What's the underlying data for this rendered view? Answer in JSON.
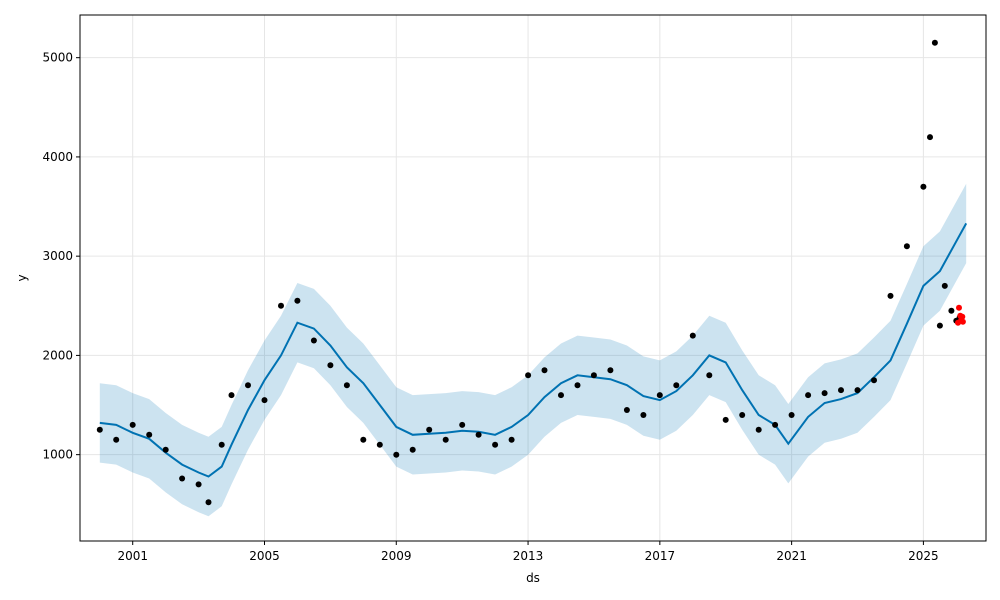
{
  "chart_data": {
    "type": "scatter",
    "xlabel": "ds",
    "ylabel": "y",
    "xlim": [
      1999.4,
      2026.9
    ],
    "ylim": [
      130,
      5430
    ],
    "x_ticks": [
      {
        "value": 2001,
        "label": "2001"
      },
      {
        "value": 2005,
        "label": "2005"
      },
      {
        "value": 2009,
        "label": "2009"
      },
      {
        "value": 2013,
        "label": "2013"
      },
      {
        "value": 2017,
        "label": "2017"
      },
      {
        "value": 2021,
        "label": "2021"
      },
      {
        "value": 2025,
        "label": "2025"
      }
    ],
    "y_ticks": [
      {
        "value": 1000,
        "label": "1000"
      },
      {
        "value": 2000,
        "label": "2000"
      },
      {
        "value": 3000,
        "label": "3000"
      },
      {
        "value": 4000,
        "label": "4000"
      },
      {
        "value": 5000,
        "label": "5000"
      }
    ],
    "grid": true,
    "series": [
      {
        "role": "forecast",
        "color": "#0072B2",
        "x": [
          2000.0,
          2000.5,
          2001.0,
          2001.5,
          2002.0,
          2002.5,
          2003.0,
          2003.3,
          2003.7,
          2004.0,
          2004.5,
          2005.0,
          2005.5,
          2006.0,
          2006.5,
          2007.0,
          2007.5,
          2008.0,
          2008.5,
          2009.0,
          2009.5,
          2010.0,
          2010.5,
          2011.0,
          2011.5,
          2012.0,
          2012.5,
          2013.0,
          2013.5,
          2014.0,
          2014.5,
          2015.0,
          2015.5,
          2016.0,
          2016.5,
          2017.0,
          2017.5,
          2018.0,
          2018.5,
          2019.0,
          2019.5,
          2020.0,
          2020.5,
          2020.9,
          2021.5,
          2022.0,
          2022.5,
          2023.0,
          2023.5,
          2024.0,
          2024.5,
          2025.0,
          2025.5,
          2026.0,
          2026.3
        ],
        "y": [
          1320,
          1300,
          1220,
          1160,
          1020,
          900,
          820,
          780,
          880,
          1100,
          1450,
          1750,
          2000,
          2330,
          2270,
          2100,
          1880,
          1720,
          1500,
          1280,
          1200,
          1210,
          1220,
          1240,
          1230,
          1200,
          1280,
          1400,
          1580,
          1720,
          1800,
          1780,
          1760,
          1700,
          1590,
          1550,
          1640,
          1800,
          2000,
          1930,
          1650,
          1400,
          1300,
          1110,
          1380,
          1520,
          1560,
          1620,
          1780,
          1950,
          2320,
          2700,
          2850,
          3150,
          3330
        ]
      },
      {
        "role": "uncertainty-interval",
        "color": "#0072B2",
        "opacity": 0.2,
        "x": [
          2000.0,
          2000.5,
          2001.0,
          2001.5,
          2002.0,
          2002.5,
          2003.0,
          2003.3,
          2003.7,
          2004.0,
          2004.5,
          2005.0,
          2005.5,
          2006.0,
          2006.5,
          2007.0,
          2007.5,
          2008.0,
          2008.5,
          2009.0,
          2009.5,
          2010.0,
          2010.5,
          2011.0,
          2011.5,
          2012.0,
          2012.5,
          2013.0,
          2013.5,
          2014.0,
          2014.5,
          2015.0,
          2015.5,
          2016.0,
          2016.5,
          2017.0,
          2017.5,
          2018.0,
          2018.5,
          2019.0,
          2019.5,
          2020.0,
          2020.5,
          2020.9,
          2021.5,
          2022.0,
          2022.5,
          2023.0,
          2023.5,
          2024.0,
          2024.5,
          2025.0,
          2025.5,
          2026.0,
          2026.3
        ],
        "lower": [
          920,
          900,
          820,
          760,
          620,
          500,
          420,
          380,
          480,
          700,
          1050,
          1350,
          1600,
          1930,
          1870,
          1700,
          1480,
          1320,
          1100,
          880,
          800,
          810,
          820,
          840,
          830,
          800,
          880,
          1000,
          1180,
          1320,
          1400,
          1380,
          1360,
          1300,
          1190,
          1150,
          1240,
          1400,
          1600,
          1530,
          1250,
          1000,
          900,
          710,
          980,
          1120,
          1160,
          1220,
          1380,
          1550,
          1920,
          2300,
          2450,
          2750,
          2930
        ],
        "upper": [
          1720,
          1700,
          1620,
          1560,
          1420,
          1300,
          1220,
          1180,
          1280,
          1500,
          1850,
          2150,
          2400,
          2730,
          2670,
          2500,
          2280,
          2120,
          1900,
          1680,
          1600,
          1610,
          1620,
          1640,
          1630,
          1600,
          1680,
          1800,
          1980,
          2120,
          2200,
          2180,
          2160,
          2100,
          1990,
          1950,
          2040,
          2200,
          2400,
          2330,
          2050,
          1800,
          1700,
          1510,
          1780,
          1920,
          1960,
          2020,
          2180,
          2350,
          2720,
          3100,
          3250,
          3550,
          3730
        ]
      },
      {
        "role": "observed",
        "color": "#000000",
        "x": [
          2000.0,
          2000.5,
          2001.0,
          2001.5,
          2002.0,
          2002.5,
          2003.0,
          2003.3,
          2003.7,
          2004.0,
          2004.5,
          2005.0,
          2005.5,
          2006.0,
          2006.5,
          2007.0,
          2007.5,
          2008.0,
          2008.5,
          2009.0,
          2009.5,
          2010.0,
          2010.5,
          2011.0,
          2011.5,
          2012.0,
          2012.5,
          2013.0,
          2013.5,
          2014.0,
          2014.5,
          2015.0,
          2015.5,
          2016.0,
          2016.5,
          2017.0,
          2017.5,
          2018.0,
          2018.5,
          2019.0,
          2019.5,
          2020.0,
          2020.5,
          2021.0,
          2021.5,
          2022.0,
          2022.5,
          2023.0,
          2023.5,
          2024.0,
          2024.5,
          2025.0,
          2025.2,
          2025.35,
          2025.5,
          2025.65,
          2025.85,
          2026.0,
          2026.1
        ],
        "y": [
          1250,
          1150,
          1300,
          1200,
          1050,
          760,
          700,
          520,
          1100,
          1600,
          1700,
          1550,
          2500,
          2550,
          2150,
          1900,
          1700,
          1150,
          1100,
          1000,
          1050,
          1250,
          1150,
          1300,
          1200,
          1100,
          1150,
          1800,
          1850,
          1600,
          1700,
          1800,
          1850,
          1450,
          1400,
          1600,
          1700,
          2200,
          1800,
          1350,
          1400,
          1250,
          1300,
          1400,
          1600,
          1620,
          1650,
          1650,
          1750,
          2600,
          3100,
          3700,
          4200,
          5150,
          2300,
          2700,
          2450,
          2350,
          2380
        ]
      },
      {
        "role": "highlighted",
        "color": "#ff0000",
        "x": [
          2026.05,
          2026.08,
          2026.12,
          2026.15,
          2026.18,
          2026.2
        ],
        "y": [
          2330,
          2480,
          2400,
          2360,
          2390,
          2340
        ]
      }
    ]
  }
}
